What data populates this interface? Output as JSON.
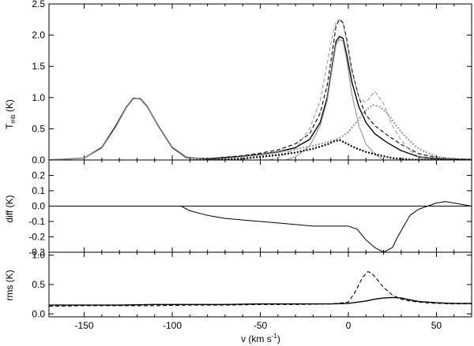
{
  "chart_data": [
    {
      "type": "line",
      "panel": "top",
      "ylabel_main": "T",
      "ylabel_sub": "mb",
      "ylabel_unit": " (K)",
      "xlim": [
        -170,
        70
      ],
      "ylim": [
        0,
        2.5
      ],
      "yticks": [
        "0.0",
        "0.5",
        "1.0",
        "1.5",
        "2.0",
        "2.5"
      ],
      "ytick_values": [
        0,
        0.5,
        1.0,
        1.5,
        2.0,
        2.5
      ],
      "baseline": 0,
      "series": [
        {
          "name": "black solid",
          "color": "#000000",
          "dash": "",
          "width": 1.4,
          "x": [
            -170,
            -150,
            -140,
            -132,
            -126,
            -122,
            -118,
            -114,
            -108,
            -100,
            -92,
            -80,
            -60,
            -50,
            -40,
            -30,
            -22,
            -16,
            -12,
            -9,
            -7,
            -5,
            -3,
            -1,
            2,
            6,
            10,
            15,
            22,
            30,
            40,
            50,
            60,
            70
          ],
          "y": [
            0,
            0.03,
            0.2,
            0.55,
            0.85,
            0.99,
            0.98,
            0.85,
            0.55,
            0.2,
            0.04,
            0.02,
            0.06,
            0.09,
            0.13,
            0.2,
            0.33,
            0.6,
            1.0,
            1.55,
            1.9,
            1.98,
            1.95,
            1.7,
            1.25,
            0.85,
            0.6,
            0.42,
            0.28,
            0.15,
            0.05,
            0.02,
            0.01,
            0.01
          ]
        },
        {
          "name": "black dashed",
          "color": "#000000",
          "dash": "5,3",
          "width": 1.1,
          "x": [
            -80,
            -60,
            -50,
            -40,
            -30,
            -22,
            -16,
            -12,
            -9,
            -7,
            -5,
            -3,
            -1,
            2,
            6,
            10,
            15,
            22,
            30,
            40,
            50,
            60,
            70
          ],
          "y": [
            0.02,
            0.07,
            0.11,
            0.16,
            0.26,
            0.42,
            0.75,
            1.2,
            1.75,
            2.15,
            2.25,
            2.2,
            1.95,
            1.45,
            1.0,
            0.72,
            0.55,
            0.4,
            0.25,
            0.1,
            0.04,
            0.02,
            0.01
          ]
        },
        {
          "name": "grey solid",
          "color": "#999999",
          "dash": "",
          "width": 1.2,
          "x": [
            -170,
            -150,
            -140,
            -132,
            -126,
            -122,
            -118,
            -114,
            -108,
            -100,
            -92,
            -80,
            -60,
            -50,
            -40,
            -30,
            -22,
            -16,
            -12,
            -9,
            -7,
            -5,
            -3,
            -1,
            2,
            6,
            10,
            15,
            20,
            25,
            30,
            40,
            50,
            60,
            70
          ],
          "y": [
            0,
            0.03,
            0.19,
            0.53,
            0.84,
            0.98,
            0.99,
            0.86,
            0.56,
            0.21,
            0.05,
            0.01,
            0.0,
            -0.02,
            -0.04,
            0.05,
            0.22,
            0.55,
            0.95,
            1.5,
            1.85,
            1.93,
            1.9,
            1.62,
            1.05,
            0.55,
            0.25,
            0.1,
            0.0,
            -0.05,
            -0.07,
            0.02,
            0.01,
            0.0,
            0.0
          ]
        },
        {
          "name": "grey dashed",
          "color": "#999999",
          "dash": "5,3",
          "width": 1.1,
          "x": [
            -80,
            -60,
            -50,
            -40,
            -30,
            -22,
            -16,
            -12,
            -9,
            -7,
            -5,
            -3,
            -1,
            2,
            6,
            10,
            15,
            20,
            25,
            30,
            35,
            40,
            50,
            60,
            70
          ],
          "y": [
            0.0,
            -0.02,
            -0.04,
            0.04,
            0.18,
            0.5,
            0.95,
            1.55,
            2.0,
            2.22,
            2.25,
            2.18,
            1.9,
            1.4,
            1.0,
            0.92,
            1.1,
            0.9,
            0.55,
            0.32,
            0.15,
            0.05,
            0.0,
            0.0,
            0.0
          ]
        },
        {
          "name": "grey dotted",
          "color": "#999999",
          "dash": "2,2",
          "width": 2.2,
          "x": [
            -90,
            -70,
            -50,
            -40,
            -30,
            -20,
            -10,
            -5,
            0,
            5,
            10,
            14,
            18,
            22,
            26,
            30,
            35,
            40,
            50,
            60,
            70
          ],
          "y": [
            0.0,
            0.02,
            0.08,
            0.12,
            0.17,
            0.23,
            0.3,
            0.35,
            0.45,
            0.62,
            0.8,
            0.88,
            0.85,
            0.75,
            0.6,
            0.45,
            0.3,
            0.18,
            0.05,
            0.01,
            0.0
          ]
        },
        {
          "name": "black dotted",
          "color": "#000000",
          "dash": "2,2",
          "width": 2.2,
          "x": [
            -90,
            -60,
            -50,
            -40,
            -30,
            -20,
            -12,
            -8,
            -5,
            -2,
            2,
            6,
            10,
            14,
            20,
            25,
            30,
            35,
            40,
            50,
            60,
            70
          ],
          "y": [
            0.0,
            0.02,
            0.05,
            0.08,
            0.12,
            0.18,
            0.25,
            0.3,
            0.32,
            0.28,
            0.22,
            0.17,
            0.13,
            0.1,
            0.06,
            0.03,
            0.02,
            0.01,
            0.0,
            0.0,
            0.0,
            0.0
          ]
        }
      ]
    },
    {
      "type": "line",
      "panel": "middle",
      "ylabel": "diff (K)",
      "xlim": [
        -170,
        70
      ],
      "ylim": [
        -0.3,
        0.3
      ],
      "yticks": [
        "-0.3",
        "-0.2",
        "-0.1",
        "0.0",
        "0.1",
        "0.2"
      ],
      "ytick_values": [
        -0.3,
        -0.2,
        -0.1,
        0.0,
        0.1,
        0.2
      ],
      "baseline": 0,
      "series": [
        {
          "name": "difference",
          "color": "#000000",
          "dash": "",
          "width": 1.0,
          "x": [
            -170,
            -150,
            -130,
            -110,
            -95,
            -90,
            -80,
            -70,
            -60,
            -50,
            -40,
            -30,
            -20,
            -10,
            0,
            5,
            10,
            15,
            20,
            25,
            28,
            32,
            35,
            40,
            45,
            50,
            55,
            60,
            65,
            70
          ],
          "y": [
            0.0,
            0.0,
            0.0,
            0.0,
            0.0,
            -0.03,
            -0.06,
            -0.08,
            -0.09,
            -0.1,
            -0.11,
            -0.12,
            -0.13,
            -0.13,
            -0.13,
            -0.15,
            -0.22,
            -0.27,
            -0.3,
            -0.27,
            -0.2,
            -0.12,
            -0.06,
            -0.02,
            0.0,
            0.02,
            0.03,
            0.02,
            0.01,
            0.0
          ]
        }
      ]
    },
    {
      "type": "line",
      "panel": "bottom",
      "ylabel": "rms (K)",
      "xlabel_main": "v (km s",
      "xlabel_sup": "-1",
      "xlabel_end": ")",
      "xlim": [
        -170,
        70
      ],
      "ylim": [
        -0.05,
        1.05
      ],
      "yticks": [
        "0.0",
        "0.5",
        "1.0"
      ],
      "ytick_values": [
        0,
        0.5,
        1.0
      ],
      "xticks": [
        "-150",
        "-100",
        "-50",
        "0",
        "50"
      ],
      "xtick_values": [
        -150,
        -100,
        -50,
        0,
        50
      ],
      "series": [
        {
          "name": "rms solid",
          "color": "#000000",
          "dash": "",
          "width": 1.4,
          "x": [
            -170,
            -150,
            -130,
            -110,
            -90,
            -70,
            -50,
            -30,
            -10,
            0,
            10,
            15,
            20,
            25,
            30,
            35,
            40,
            50,
            60,
            70
          ],
          "y": [
            0.15,
            0.15,
            0.15,
            0.16,
            0.16,
            0.16,
            0.17,
            0.17,
            0.17,
            0.18,
            0.22,
            0.25,
            0.27,
            0.28,
            0.27,
            0.24,
            0.21,
            0.19,
            0.18,
            0.18
          ]
        },
        {
          "name": "rms dashed",
          "color": "#000000",
          "dash": "5,3",
          "width": 1.1,
          "x": [
            -170,
            -150,
            -130,
            -110,
            -90,
            -70,
            -50,
            -30,
            -10,
            0,
            4,
            8,
            11,
            13,
            16,
            20,
            25,
            30,
            35,
            40,
            50,
            60,
            70
          ],
          "y": [
            0.13,
            0.14,
            0.14,
            0.14,
            0.15,
            0.15,
            0.16,
            0.16,
            0.17,
            0.2,
            0.38,
            0.62,
            0.72,
            0.7,
            0.6,
            0.45,
            0.32,
            0.25,
            0.22,
            0.2,
            0.18,
            0.17,
            0.17
          ]
        }
      ]
    }
  ]
}
